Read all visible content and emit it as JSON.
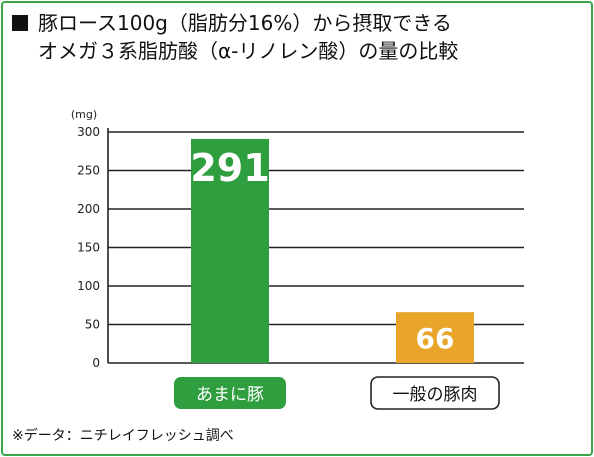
{
  "title": {
    "line1": "豚ロース100g（脂肪分16%）から摂取できる",
    "line2": "オメガ３系脂肪酸（α-リノレン酸）の量の比較"
  },
  "footnote": "※データ：ニチレイフレッシュ調べ",
  "colors": {
    "frame": "#3aa64b",
    "amanibuta": "#2e9e3e",
    "general": "#e8a52a"
  },
  "chart_data": {
    "type": "bar",
    "unit": "(mg)",
    "ylim": [
      0,
      300
    ],
    "yticks": [
      0,
      50,
      100,
      150,
      200,
      250,
      300
    ],
    "grid": true,
    "categories": [
      "あまに豚",
      "一般の豚肉"
    ],
    "values": [
      291,
      66
    ],
    "data_labels": [
      "291",
      "66"
    ],
    "category_styles": [
      "filled",
      "outlined"
    ]
  }
}
